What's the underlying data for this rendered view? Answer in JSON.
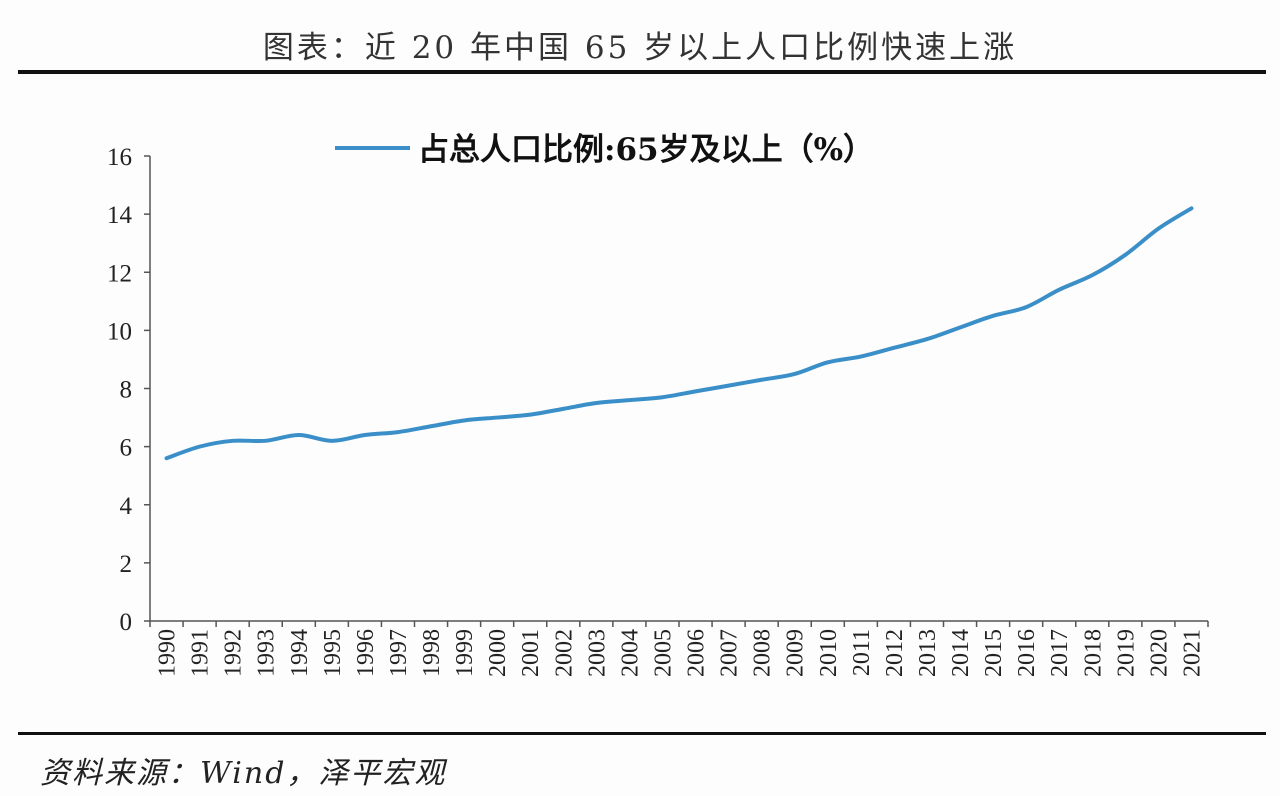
{
  "title": "图表：近 20 年中国 65 岁以上人口比例快速上涨",
  "source": "资料来源：Wind，泽平宏观",
  "chart_data": {
    "type": "line",
    "title": "",
    "xlabel": "",
    "ylabel": "",
    "categories": [
      "1990",
      "1991",
      "1992",
      "1993",
      "1994",
      "1995",
      "1996",
      "1997",
      "1998",
      "1999",
      "2000",
      "2001",
      "2002",
      "2003",
      "2004",
      "2005",
      "2006",
      "2007",
      "2008",
      "2009",
      "2010",
      "2011",
      "2012",
      "2013",
      "2014",
      "2015",
      "2016",
      "2017",
      "2018",
      "2019",
      "2020",
      "2021"
    ],
    "series": [
      {
        "name": "占总人口比例:65岁及以上（%）",
        "color": "#3b8fc9",
        "values": [
          5.6,
          6.0,
          6.2,
          6.2,
          6.4,
          6.2,
          6.4,
          6.5,
          6.7,
          6.9,
          7.0,
          7.1,
          7.3,
          7.5,
          7.6,
          7.7,
          7.9,
          8.1,
          8.3,
          8.5,
          8.9,
          9.1,
          9.4,
          9.7,
          10.1,
          10.5,
          10.8,
          11.4,
          11.9,
          12.6,
          13.5,
          14.2
        ]
      }
    ],
    "yticks": [
      "0",
      "2",
      "4",
      "6",
      "8",
      "10",
      "12",
      "14",
      "16"
    ],
    "ylim": [
      0,
      16
    ],
    "grid": false,
    "legend": "top"
  }
}
